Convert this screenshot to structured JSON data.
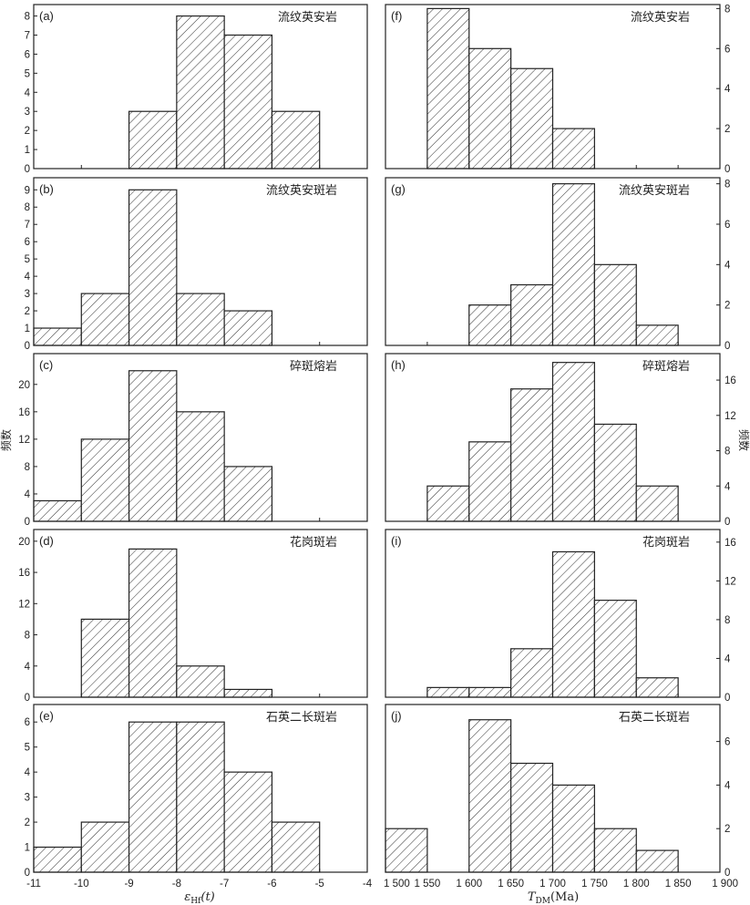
{
  "chart_data": [
    {
      "id": "a",
      "letter": "(a)",
      "title": "流纹英安岩",
      "type": "bar",
      "bin_edges": [
        -9,
        -8,
        -7,
        -6,
        -5
      ],
      "values": [
        3,
        8,
        7,
        3
      ],
      "xlim": [
        -11,
        -4
      ],
      "ylim": [
        0,
        8.6
      ],
      "yticks": [
        0,
        1,
        2,
        3,
        4,
        5,
        6,
        7,
        8
      ]
    },
    {
      "id": "b",
      "letter": "(b)",
      "title": "流纹英安斑岩",
      "type": "bar",
      "bin_edges": [
        -11,
        -10,
        -9,
        -8,
        -7,
        -6
      ],
      "values": [
        1,
        3,
        9,
        3,
        2
      ],
      "xlim": [
        -11,
        -4
      ],
      "ylim": [
        0,
        9.7
      ],
      "yticks": [
        0,
        1,
        2,
        3,
        4,
        5,
        6,
        7,
        8,
        9
      ]
    },
    {
      "id": "c",
      "letter": "(c)",
      "title": "碎斑熔岩",
      "type": "bar",
      "bin_edges": [
        -11,
        -10,
        -9,
        -8,
        -7,
        -6
      ],
      "values": [
        3,
        12,
        22,
        16,
        8
      ],
      "xlim": [
        -11,
        -4
      ],
      "ylim": [
        0,
        24.5
      ],
      "yticks": [
        0,
        4,
        8,
        12,
        16,
        20
      ]
    },
    {
      "id": "d",
      "letter": "(d)",
      "title": "花岗斑岩",
      "type": "bar",
      "bin_edges": [
        -10,
        -9,
        -8,
        -7,
        -6
      ],
      "values": [
        10,
        19,
        4,
        1
      ],
      "xlim": [
        -11,
        -4
      ],
      "ylim": [
        0,
        21.5
      ],
      "yticks": [
        0,
        4,
        8,
        12,
        16,
        20
      ]
    },
    {
      "id": "e",
      "letter": "(e)",
      "title": "石英二长斑岩",
      "type": "bar",
      "bin_edges": [
        -11,
        -10,
        -9,
        -8,
        -7,
        -6,
        -5
      ],
      "values": [
        1,
        2,
        6,
        6,
        4,
        2
      ],
      "xlim": [
        -11,
        -4
      ],
      "ylim": [
        0,
        6.7
      ],
      "yticks": [
        0,
        1,
        2,
        3,
        4,
        5,
        6
      ]
    },
    {
      "id": "f",
      "letter": "(f)",
      "title": "流纹英安岩",
      "type": "bar",
      "bin_edges": [
        1550,
        1600,
        1650,
        1700,
        1750
      ],
      "values": [
        8,
        6,
        5,
        2
      ],
      "xlim": [
        1500,
        1900
      ],
      "ylim": [
        0,
        8.2
      ],
      "yticks": [
        0,
        2,
        4,
        6,
        8
      ]
    },
    {
      "id": "g",
      "letter": "(g)",
      "title": "流纹英安斑岩",
      "type": "bar",
      "bin_edges": [
        1600,
        1650,
        1700,
        1750,
        1800,
        1850
      ],
      "values": [
        2,
        3,
        8,
        4,
        1
      ],
      "xlim": [
        1500,
        1900
      ],
      "ylim": [
        0,
        8.3
      ],
      "yticks": [
        0,
        2,
        4,
        6,
        8
      ]
    },
    {
      "id": "h",
      "letter": "(h)",
      "title": "碎斑熔岩",
      "type": "bar",
      "bin_edges": [
        1550,
        1600,
        1650,
        1700,
        1750,
        1800,
        1850
      ],
      "values": [
        4,
        9,
        15,
        18,
        11,
        4
      ],
      "xlim": [
        1500,
        1900
      ],
      "ylim": [
        0,
        19
      ],
      "yticks": [
        0,
        4,
        8,
        12,
        16
      ]
    },
    {
      "id": "i",
      "letter": "(i)",
      "title": "花岗斑岩",
      "type": "bar",
      "bin_edges": [
        1550,
        1600,
        1650,
        1700,
        1750,
        1800,
        1850
      ],
      "values": [
        1,
        1,
        5,
        15,
        10,
        2
      ],
      "xlim": [
        1500,
        1900
      ],
      "ylim": [
        0,
        17.3
      ],
      "yticks": [
        0,
        4,
        8,
        12,
        16
      ]
    },
    {
      "id": "j",
      "letter": "(j)",
      "title": "石英二长斑岩",
      "type": "bar",
      "bin_edges": [
        1500,
        1550,
        1600,
        1650,
        1700,
        1750,
        1800,
        1850
      ],
      "values": [
        2,
        0,
        7,
        5,
        4,
        2,
        1
      ],
      "xlim": [
        1500,
        1900
      ],
      "ylim": [
        0,
        7.7
      ],
      "yticks": [
        0,
        2,
        4,
        6
      ]
    }
  ],
  "axes": {
    "left_ylabel": "频数",
    "right_ylabel": "频数",
    "left_xlabel_main": "ε",
    "left_xlabel_sub": "Hf",
    "left_xlabel_tail": "(t)",
    "right_xlabel_main": "T",
    "right_xlabel_sub": "DM",
    "right_xlabel_tail": "(Ma)",
    "left_xticks": [
      "-11",
      "-10",
      "-9",
      "-8",
      "-7",
      "-6",
      "-5",
      "-4"
    ],
    "left_xtick_values": [
      -11,
      -10,
      -9,
      -8,
      -7,
      -6,
      -5,
      -4
    ],
    "right_xticks": [
      "1 500",
      "1 550",
      "1 600",
      "1 650",
      "1 700",
      "1 750",
      "1 800",
      "1 850",
      "1 900"
    ],
    "right_xtick_values": [
      1500,
      1550,
      1600,
      1650,
      1700,
      1750,
      1800,
      1850,
      1900
    ]
  }
}
